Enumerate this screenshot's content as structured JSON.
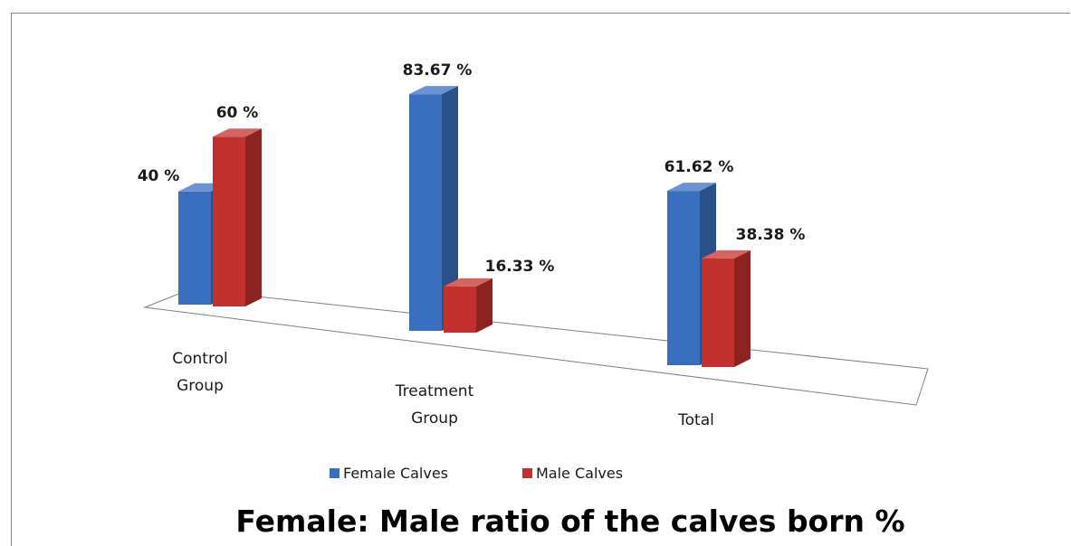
{
  "chart_data": {
    "type": "bar",
    "title": "Female: Male ratio of the calves born %",
    "categories": [
      [
        "Control",
        "Group"
      ],
      [
        "Treatment",
        "Group"
      ],
      [
        "Total"
      ]
    ],
    "series": [
      {
        "name": "Female Calves",
        "values": [
          40,
          83.67,
          61.62
        ],
        "labels": [
          "40 %",
          "83.67 %",
          "61.62 %"
        ],
        "color": "#3a6fc0"
      },
      {
        "name": "Male Calves",
        "values": [
          60,
          16.33,
          38.38
        ],
        "labels": [
          "60 %",
          "16.33 %",
          "38.38 %"
        ],
        "color": "#c3312e"
      }
    ],
    "legend_position": "bottom",
    "three_d": true
  }
}
